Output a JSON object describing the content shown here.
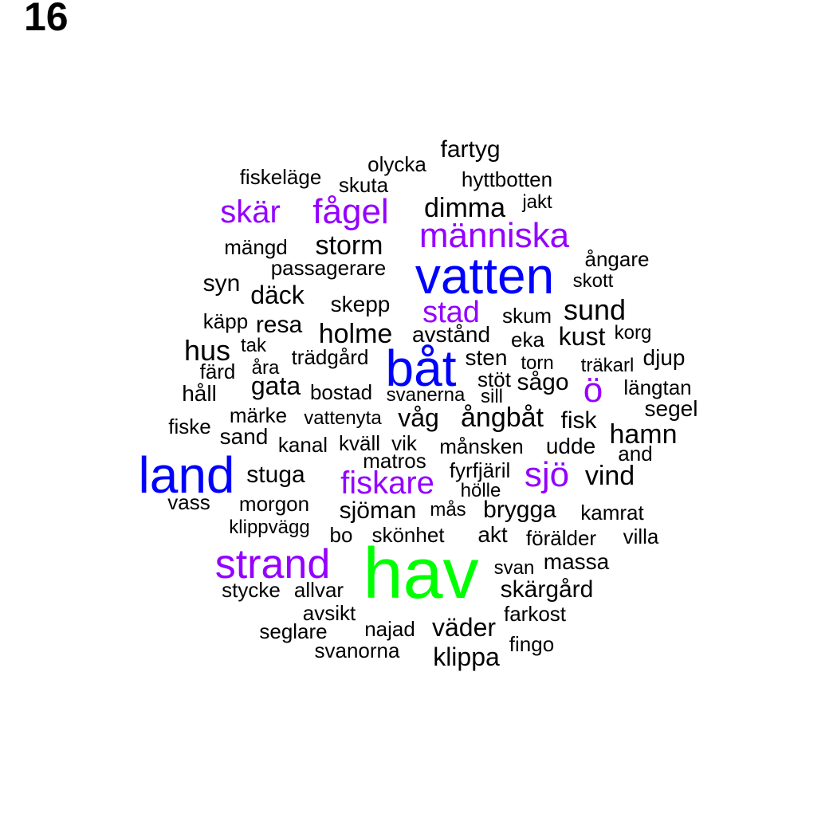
{
  "panel_label": "16",
  "colors": {
    "tier4": "#00ff00",
    "tier3": "#0000ff",
    "tier2": "#9400ff",
    "tier1": "#000000"
  },
  "words": [
    {
      "text": "hav",
      "tier": 4
    },
    {
      "text": "vatten",
      "tier": 3
    },
    {
      "text": "båt",
      "tier": 3
    },
    {
      "text": "land",
      "tier": 3
    },
    {
      "text": "människa",
      "tier": 2
    },
    {
      "text": "strand",
      "tier": 2
    },
    {
      "text": "fiskare",
      "tier": 2
    },
    {
      "text": "sjö",
      "tier": 2
    },
    {
      "text": "fågel",
      "tier": 2
    },
    {
      "text": "skär",
      "tier": 2
    },
    {
      "text": "stad",
      "tier": 2
    },
    {
      "text": "ö",
      "tier": 2
    },
    {
      "text": "fartyg",
      "tier": 1
    },
    {
      "text": "olycka",
      "tier": 1
    },
    {
      "text": "fiskeläge",
      "tier": 1
    },
    {
      "text": "skuta",
      "tier": 1
    },
    {
      "text": "hyttbotten",
      "tier": 1
    },
    {
      "text": "dimma",
      "tier": 1
    },
    {
      "text": "jakt",
      "tier": 1
    },
    {
      "text": "storm",
      "tier": 1
    },
    {
      "text": "mängd",
      "tier": 1
    },
    {
      "text": "passagerare",
      "tier": 1
    },
    {
      "text": "ångare",
      "tier": 1
    },
    {
      "text": "syn",
      "tier": 1
    },
    {
      "text": "däck",
      "tier": 1
    },
    {
      "text": "skott",
      "tier": 1
    },
    {
      "text": "skepp",
      "tier": 1
    },
    {
      "text": "skum",
      "tier": 1
    },
    {
      "text": "sund",
      "tier": 1
    },
    {
      "text": "käpp",
      "tier": 1
    },
    {
      "text": "resa",
      "tier": 1
    },
    {
      "text": "holme",
      "tier": 1
    },
    {
      "text": "avstånd",
      "tier": 1
    },
    {
      "text": "eka",
      "tier": 1
    },
    {
      "text": "kust",
      "tier": 1
    },
    {
      "text": "korg",
      "tier": 1
    },
    {
      "text": "hus",
      "tier": 1
    },
    {
      "text": "tak",
      "tier": 1
    },
    {
      "text": "trädgård",
      "tier": 1
    },
    {
      "text": "sten",
      "tier": 1
    },
    {
      "text": "torn",
      "tier": 1
    },
    {
      "text": "träkarl",
      "tier": 1
    },
    {
      "text": "djup",
      "tier": 1
    },
    {
      "text": "färd",
      "tier": 1
    },
    {
      "text": "åra",
      "tier": 1
    },
    {
      "text": "stöt",
      "tier": 1
    },
    {
      "text": "sågo",
      "tier": 1
    },
    {
      "text": "gata",
      "tier": 1
    },
    {
      "text": "håll",
      "tier": 1
    },
    {
      "text": "bostad",
      "tier": 1
    },
    {
      "text": "svanerna",
      "tier": 1
    },
    {
      "text": "sill",
      "tier": 1
    },
    {
      "text": "längtan",
      "tier": 1
    },
    {
      "text": "märke",
      "tier": 1
    },
    {
      "text": "vattenyta",
      "tier": 1
    },
    {
      "text": "våg",
      "tier": 1
    },
    {
      "text": "ångbåt",
      "tier": 1
    },
    {
      "text": "fisk",
      "tier": 1
    },
    {
      "text": "segel",
      "tier": 1
    },
    {
      "text": "fiske",
      "tier": 1
    },
    {
      "text": "sand",
      "tier": 1
    },
    {
      "text": "kanal",
      "tier": 1
    },
    {
      "text": "kväll",
      "tier": 1
    },
    {
      "text": "vik",
      "tier": 1
    },
    {
      "text": "månsken",
      "tier": 1
    },
    {
      "text": "udde",
      "tier": 1
    },
    {
      "text": "hamn",
      "tier": 1
    },
    {
      "text": "matros",
      "tier": 1
    },
    {
      "text": "and",
      "tier": 1
    },
    {
      "text": "stuga",
      "tier": 1
    },
    {
      "text": "fyrfjäril",
      "tier": 1
    },
    {
      "text": "vind",
      "tier": 1
    },
    {
      "text": "hölle",
      "tier": 1
    },
    {
      "text": "vass",
      "tier": 1
    },
    {
      "text": "morgon",
      "tier": 1
    },
    {
      "text": "sjöman",
      "tier": 1
    },
    {
      "text": "mås",
      "tier": 1
    },
    {
      "text": "brygga",
      "tier": 1
    },
    {
      "text": "kamrat",
      "tier": 1
    },
    {
      "text": "klippvägg",
      "tier": 1
    },
    {
      "text": "bo",
      "tier": 1
    },
    {
      "text": "skönhet",
      "tier": 1
    },
    {
      "text": "akt",
      "tier": 1
    },
    {
      "text": "förälder",
      "tier": 1
    },
    {
      "text": "villa",
      "tier": 1
    },
    {
      "text": "massa",
      "tier": 1
    },
    {
      "text": "svan",
      "tier": 1
    },
    {
      "text": "skärgård",
      "tier": 1
    },
    {
      "text": "stycke",
      "tier": 1
    },
    {
      "text": "allvar",
      "tier": 1
    },
    {
      "text": "avsikt",
      "tier": 1
    },
    {
      "text": "farkost",
      "tier": 1
    },
    {
      "text": "seglare",
      "tier": 1
    },
    {
      "text": "najad",
      "tier": 1
    },
    {
      "text": "väder",
      "tier": 1
    },
    {
      "text": "fingo",
      "tier": 1
    },
    {
      "text": "svanorna",
      "tier": 1
    },
    {
      "text": "klippa",
      "tier": 1
    }
  ]
}
